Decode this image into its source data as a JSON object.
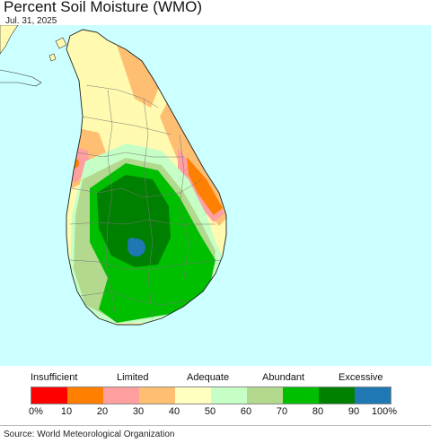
{
  "title": "Percent Soil Moisture (WMO)",
  "date": "Jul. 31, 2025",
  "legend": {
    "categories": [
      "Insufficient",
      "Limited",
      "Adequate",
      "Abundant",
      "Excessive"
    ],
    "ticks": [
      "0%",
      "10",
      "20",
      "30",
      "40",
      "50",
      "60",
      "70",
      "80",
      "90",
      "100%"
    ],
    "colors": [
      "#ff0000",
      "#ff7f00",
      "#ff9f9f",
      "#ffbf72",
      "#ffffbf",
      "#c5ffc5",
      "#b2d98d",
      "#00bf00",
      "#008000",
      "#1f77b4"
    ]
  },
  "map_colors": {
    "ocean": "#ccffff",
    "mainland": "#fffaaf"
  },
  "source": "Source: World Meteorological Organization"
}
